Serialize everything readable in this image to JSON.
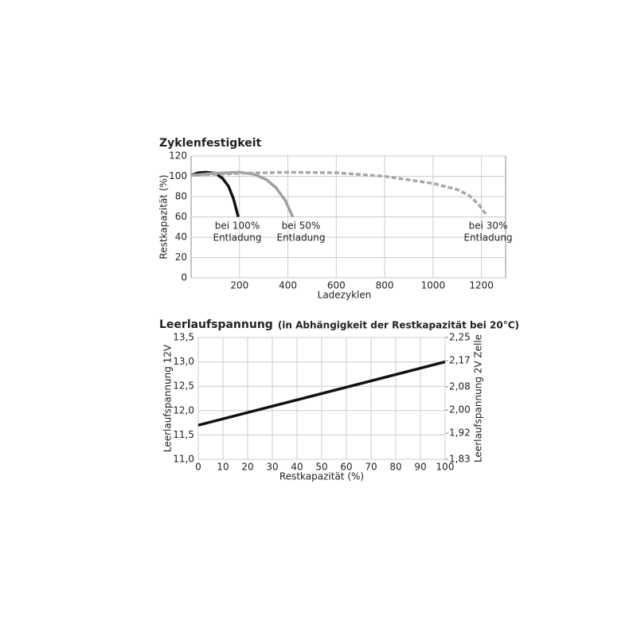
{
  "chart_data": [
    {
      "type": "line",
      "title": "Zyklenfestigkeit",
      "xlabel": "Ladezyklen",
      "ylabel": "Restkapazität (%)",
      "xlim": [
        0,
        1300
      ],
      "xticks": [
        200,
        400,
        600,
        800,
        1000,
        1200
      ],
      "ylim": [
        0,
        120
      ],
      "yticks": [
        0,
        20,
        40,
        60,
        80,
        100,
        120
      ],
      "grid": true,
      "series": [
        {
          "color": "#111111",
          "linestyle": "solid",
          "x": [
            0,
            30,
            60,
            100,
            130,
            155,
            175,
            195
          ],
          "values": [
            101,
            103.5,
            104,
            103,
            98,
            90,
            78,
            60
          ]
        },
        {
          "color": "#a0a0a0",
          "linestyle": "solid",
          "x": [
            0,
            100,
            200,
            260,
            310,
            350,
            390,
            420
          ],
          "values": [
            101,
            103,
            104,
            102,
            97,
            89,
            76,
            60
          ]
        },
        {
          "color": "#a8a8a8",
          "linestyle": "dashed",
          "x": [
            0,
            200,
            400,
            600,
            800,
            1000,
            1100,
            1150,
            1190,
            1220
          ],
          "values": [
            101,
            103,
            104,
            103.5,
            100,
            93,
            87,
            81,
            72,
            62
          ]
        }
      ],
      "annotations": [
        [
          "bei 100%",
          "Entladung"
        ],
        [
          "bei 50%",
          "Entladung"
        ],
        [
          "bei 30%",
          "Entladung"
        ]
      ]
    },
    {
      "type": "line",
      "title": "Leerlaufspannung",
      "subtitle": "(in Abhängigkeit der Restkapazität bei 20°C)",
      "xlabel": "Restkapazität (%)",
      "ylabel": "Leerlaufspannung 12V",
      "y2label": "Leerlaufspannung 2V Zelle",
      "xlim": [
        0,
        100
      ],
      "xticks": [
        0,
        10,
        20,
        30,
        40,
        50,
        60,
        70,
        80,
        90,
        100
      ],
      "ylim": [
        11,
        13.5
      ],
      "yticks": [
        {
          "value": 11,
          "label": "11,0"
        },
        {
          "value": 11.5,
          "label": "11,5"
        },
        {
          "value": 12,
          "label": "12,0"
        },
        {
          "value": 12.5,
          "label": "12,5"
        },
        {
          "value": 13,
          "label": "13,0"
        },
        {
          "value": 13.5,
          "label": "13,5"
        }
      ],
      "y2lim": [
        1.83,
        2.25
      ],
      "y2ticks": [
        {
          "value": 1.83,
          "label": "1,83"
        },
        {
          "value": 1.92,
          "label": "1,92"
        },
        {
          "value": 2.0,
          "label": "2,00"
        },
        {
          "value": 2.08,
          "label": "2,08"
        },
        {
          "value": 2.17,
          "label": "2,17"
        },
        {
          "value": 2.25,
          "label": "2,25"
        }
      ],
      "grid": true,
      "series": [
        {
          "color": "#111111",
          "linestyle": "solid",
          "x": [
            0,
            100
          ],
          "values": [
            11.7,
            13.0
          ]
        }
      ]
    }
  ]
}
